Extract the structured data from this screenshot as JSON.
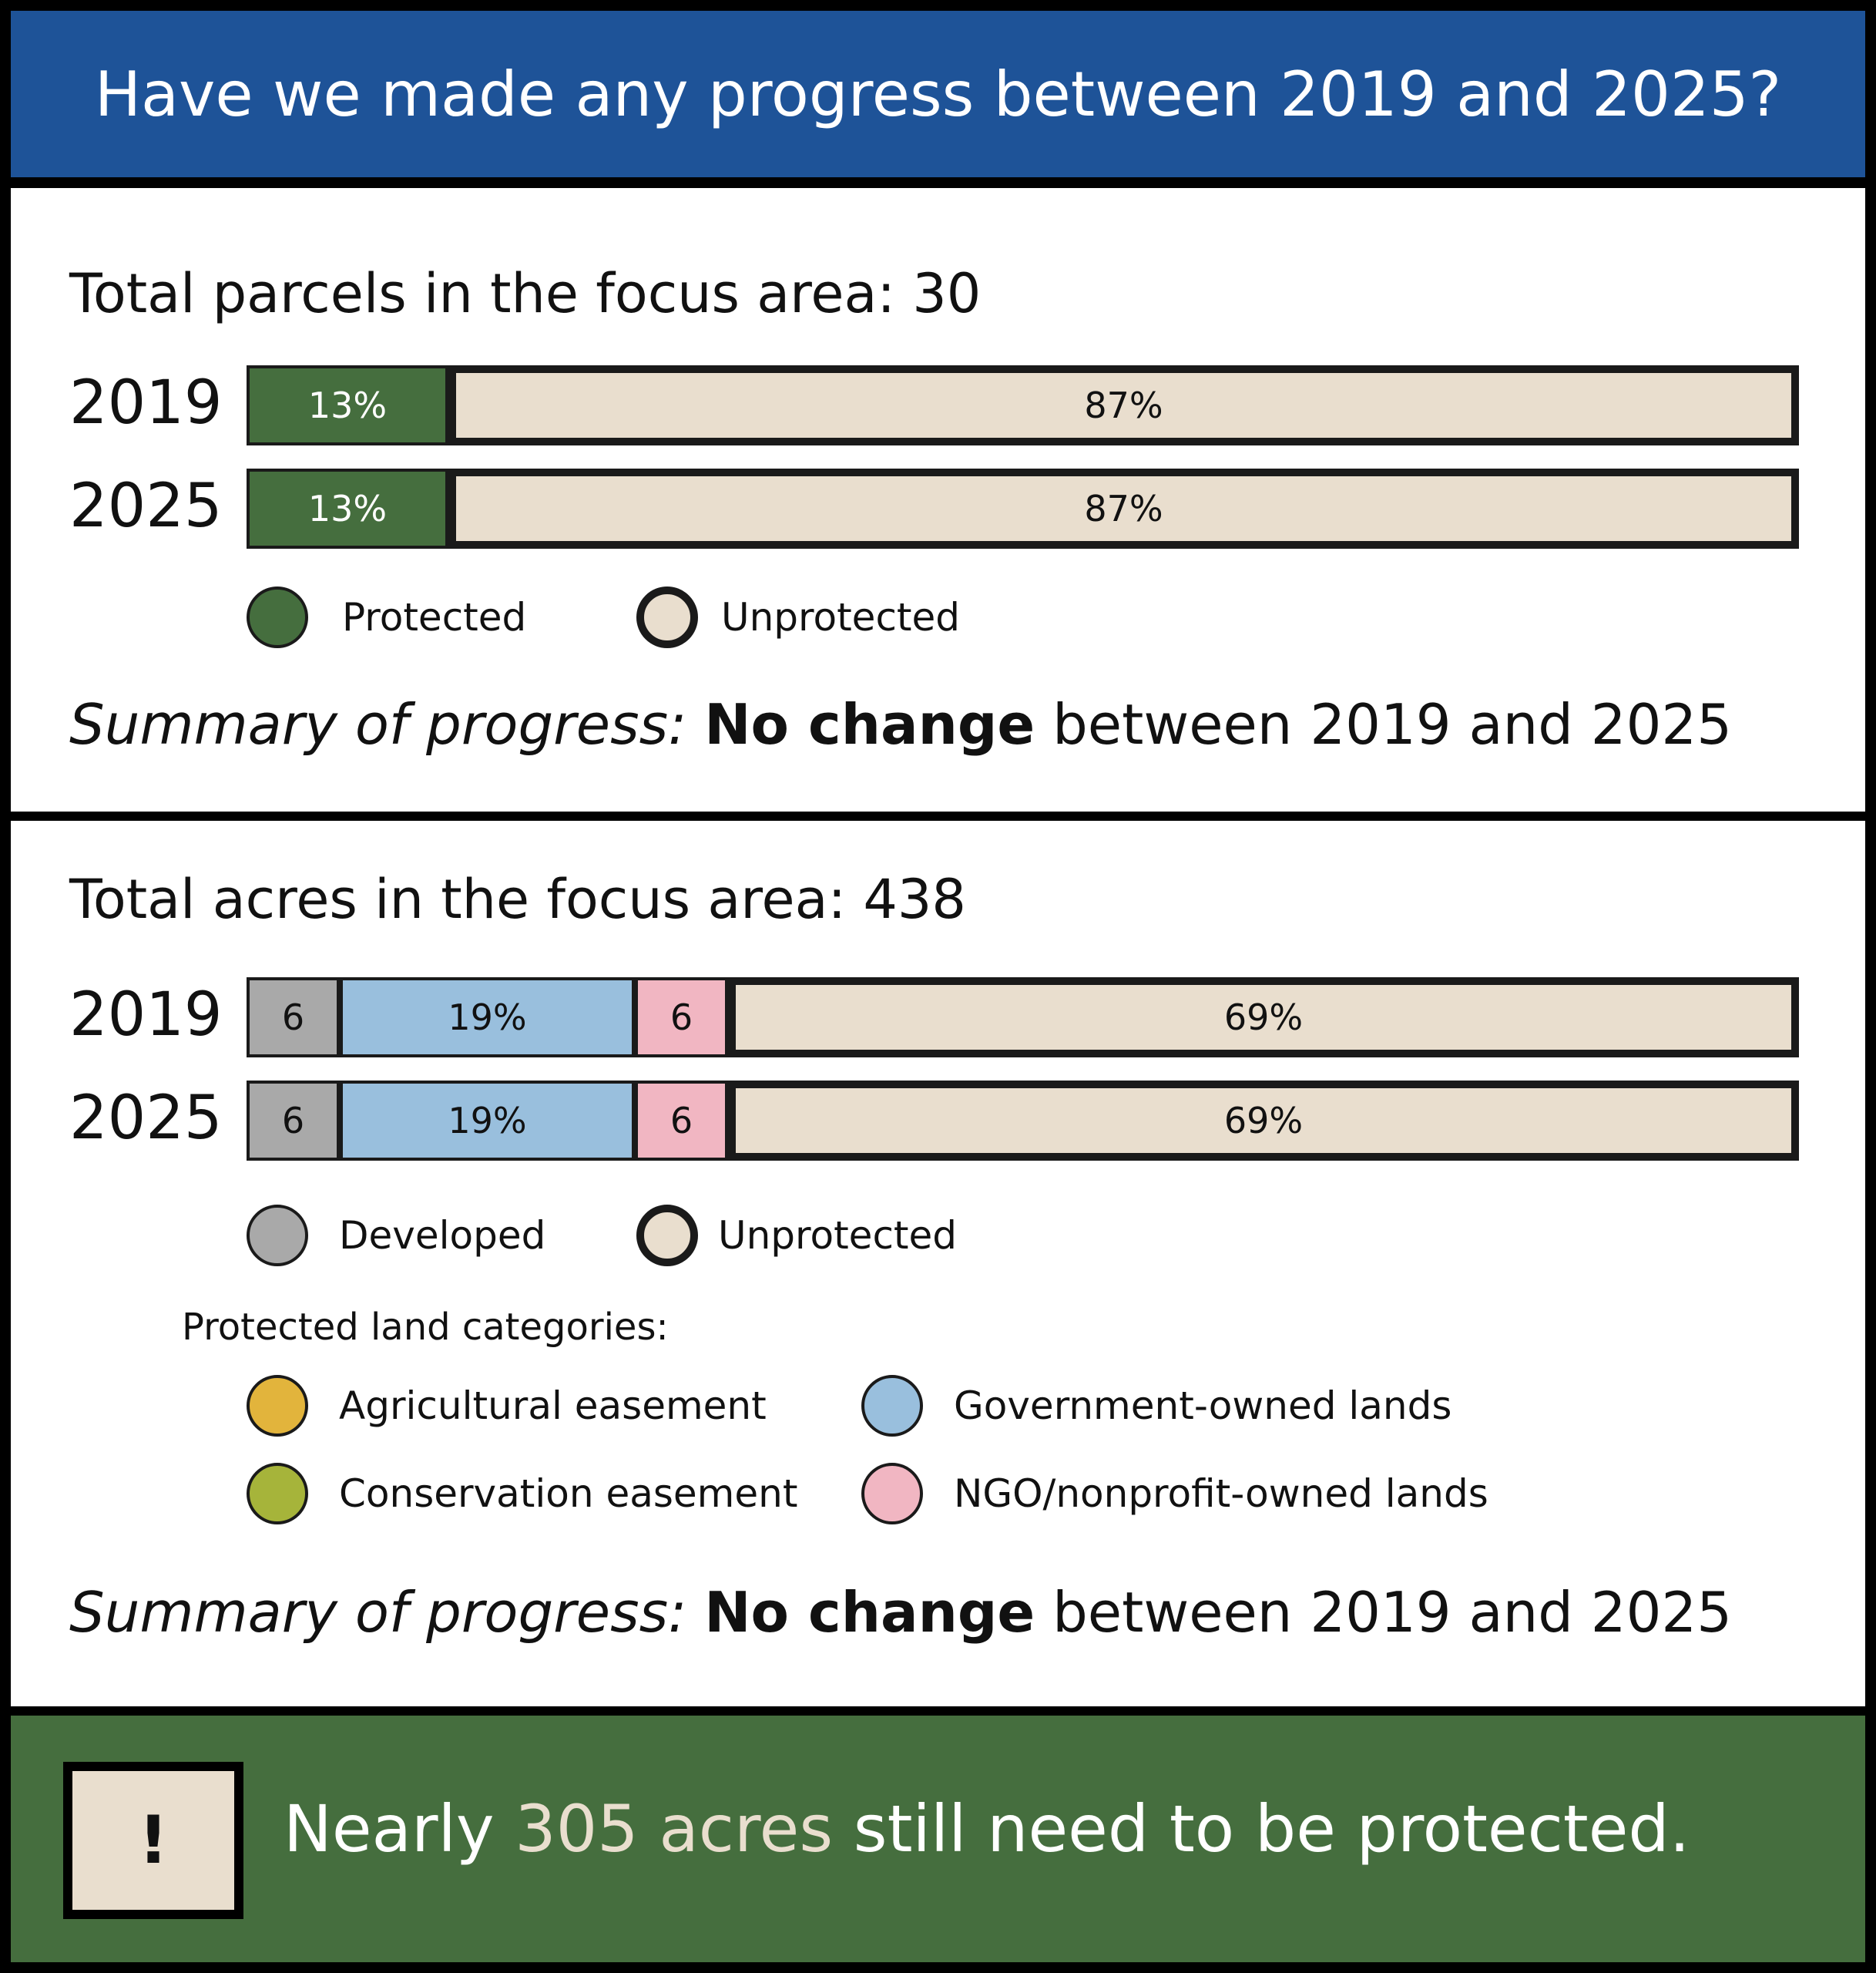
{
  "header": {
    "title": "Have we made any progress between 2019 and 2025?"
  },
  "colors": {
    "header_bg": "#1e5398",
    "protected": "#456e3e",
    "unprotected": "#e9dece",
    "developed": "#a9a9a9",
    "government": "#99bfdd",
    "ngo": "#f1b6c2",
    "agricultural": "#e2b43c",
    "conservation": "#a6b43a",
    "footer_bg": "#456e3e"
  },
  "parcels": {
    "title": "Total parcels in the focus area: 30",
    "legend": [
      {
        "label": "Protected",
        "color": "#456e3e",
        "outline": "normal"
      },
      {
        "label": "Unprotected",
        "color": "#e9dece",
        "outline": "thick"
      }
    ],
    "summary": {
      "label": "Summary of progress:",
      "strong": "No change",
      "rest": "between 2019 and 2025"
    }
  },
  "acres": {
    "title": "Total acres in the focus area: 438",
    "legend": [
      {
        "label": "Developed",
        "color": "#a9a9a9",
        "outline": "normal"
      },
      {
        "label": "Unprotected",
        "color": "#e9dece",
        "outline": "thick"
      }
    ],
    "categories_title": "Protected land categories:",
    "categories": [
      {
        "label": "Agricultural easement",
        "color": "#e2b43c"
      },
      {
        "label": "Government-owned lands",
        "color": "#99bfdd"
      },
      {
        "label": "Conservation easement",
        "color": "#a6b43a"
      },
      {
        "label": "NGO/nonprofit-owned lands",
        "color": "#f1b6c2"
      }
    ],
    "summary": {
      "label": "Summary of progress:",
      "strong": "No change",
      "rest": "between 2019 and 2025"
    }
  },
  "chart_data": [
    {
      "type": "bar",
      "orientation": "horizontal",
      "stacked": true,
      "title": "Total parcels in the focus area: 30",
      "categories": [
        "2019",
        "2025"
      ],
      "series": [
        {
          "name": "Protected",
          "color": "#456e3e",
          "values": [
            13,
            13
          ],
          "labels": [
            "13%",
            "13%"
          ],
          "label_color": "#ffffff"
        },
        {
          "name": "Unprotected",
          "color": "#e9dece",
          "values": [
            87,
            87
          ],
          "labels": [
            "87%",
            "87%"
          ],
          "label_color": "#111111"
        }
      ],
      "xlim": [
        0,
        100
      ]
    },
    {
      "type": "bar",
      "orientation": "horizontal",
      "stacked": true,
      "title": "Total acres in the focus area: 438",
      "categories": [
        "2019",
        "2025"
      ],
      "series": [
        {
          "name": "Developed",
          "color": "#a9a9a9",
          "values": [
            6,
            6
          ],
          "labels": [
            "6",
            "6"
          ],
          "label_color": "#111111"
        },
        {
          "name": "Government-owned lands",
          "color": "#99bfdd",
          "values": [
            19,
            19
          ],
          "labels": [
            "19%",
            "19%"
          ],
          "label_color": "#111111"
        },
        {
          "name": "NGO/nonprofit-owned lands",
          "color": "#f1b6c2",
          "values": [
            6,
            6
          ],
          "labels": [
            "6",
            "6"
          ],
          "label_color": "#111111"
        },
        {
          "name": "Unprotected",
          "color": "#e9dece",
          "values": [
            69,
            69
          ],
          "labels": [
            "69%",
            "69%"
          ],
          "label_color": "#111111"
        }
      ],
      "xlim": [
        0,
        100
      ]
    }
  ],
  "footer": {
    "alert_symbol": "!",
    "text_before": "Nearly ",
    "highlight": "305 acres",
    "text_after": " still need to be protected."
  }
}
